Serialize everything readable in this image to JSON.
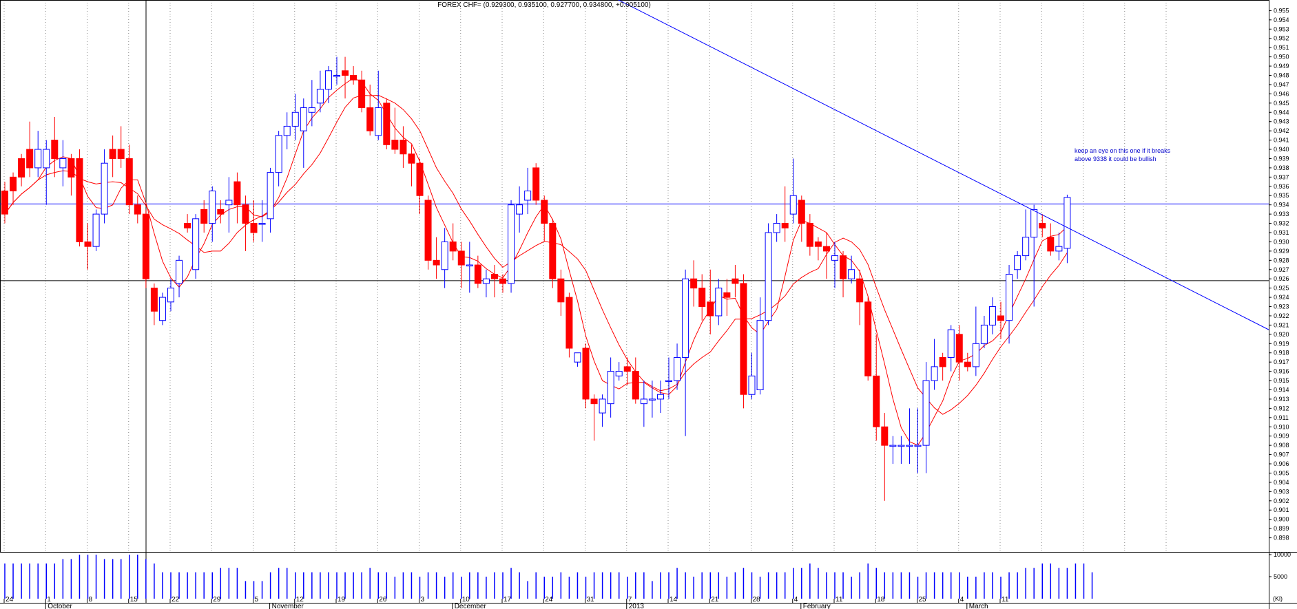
{
  "chart_data": {
    "type": "candlestick",
    "title": "FOREX CHF= (0.929300, 0.935100, 0.927700, 0.934800, +0.005100)",
    "ylim": [
      0.897,
      0.9557
    ],
    "y_ticks": [
      "0.955",
      "0.954",
      "0.953",
      "0.952",
      "0.951",
      "0.950",
      "0.949",
      "0.948",
      "0.947",
      "0.946",
      "0.945",
      "0.944",
      "0.943",
      "0.942",
      "0.941",
      "0.940",
      "0.939",
      "0.938",
      "0.937",
      "0.936",
      "0.935",
      "0.934",
      "0.933",
      "0.932",
      "0.931",
      "0.930",
      "0.929",
      "0.928",
      "0.927",
      "0.926",
      "0.925",
      "0.924",
      "0.923",
      "0.922",
      "0.921",
      "0.920",
      "0.919",
      "0.918",
      "0.917",
      "0.916",
      "0.915",
      "0.914",
      "0.913",
      "0.912",
      "0.911",
      "0.910",
      "0.909",
      "0.908",
      "0.907",
      "0.906",
      "0.905",
      "0.904",
      "0.903",
      "0.902",
      "0.901",
      "0.900",
      "0.899",
      "0.898"
    ],
    "volume_ticks": [
      "10000",
      "5000"
    ],
    "volume_unit_label": "(Kl)",
    "day_labels": [
      "24",
      "1",
      "8",
      "15",
      "22",
      "29",
      "5",
      "12",
      "19",
      "26",
      "3",
      "10",
      "17",
      "24",
      "31",
      "7",
      "14",
      "21",
      "28",
      "4",
      "11",
      "18",
      "25",
      "4",
      "11"
    ],
    "month_labels": [
      "October",
      "November",
      "December",
      "2013",
      "February",
      "March"
    ],
    "annotation": "keep an eye on this one if it breaks above 9338 it could be bullish",
    "annotation_lines": [
      "keep an eye on this one if it breaks",
      "above 9338 it could be bullish"
    ],
    "horizontal_lines": [
      0.9341,
      0.9258
    ],
    "trendline": {
      "start": 0.964,
      "end": 0.9205
    },
    "candles": [
      [
        0.9355,
        0.933,
        0.9365,
        0.932
      ],
      [
        0.937,
        0.9355,
        0.9375,
        0.934
      ],
      [
        0.939,
        0.937,
        0.9395,
        0.936
      ],
      [
        0.94,
        0.938,
        0.943,
        0.937
      ],
      [
        0.938,
        0.94,
        0.942,
        0.937
      ],
      [
        0.938,
        0.94,
        0.941,
        0.934
      ],
      [
        0.941,
        0.939,
        0.9435,
        0.937
      ],
      [
        0.938,
        0.939,
        0.941,
        0.936
      ],
      [
        0.939,
        0.937,
        0.9395,
        0.935
      ],
      [
        0.939,
        0.93,
        0.94,
        0.9295
      ],
      [
        0.93,
        0.9295,
        0.932,
        0.927
      ],
      [
        0.9295,
        0.933,
        0.9335,
        0.929
      ],
      [
        0.933,
        0.9385,
        0.94,
        0.932
      ],
      [
        0.94,
        0.939,
        0.9415,
        0.937
      ],
      [
        0.94,
        0.939,
        0.9425,
        0.938
      ],
      [
        0.939,
        0.934,
        0.9405,
        0.933
      ],
      [
        0.934,
        0.933,
        0.935,
        0.932
      ],
      [
        0.933,
        0.926,
        0.9335,
        0.925
      ],
      [
        0.925,
        0.9225,
        0.9255,
        0.921
      ],
      [
        0.9215,
        0.924,
        0.9245,
        0.921
      ],
      [
        0.9235,
        0.925,
        0.926,
        0.9225
      ],
      [
        0.9255,
        0.928,
        0.9285,
        0.924
      ],
      [
        0.932,
        0.9315,
        0.933,
        0.931
      ],
      [
        0.927,
        0.9325,
        0.933,
        0.926
      ],
      [
        0.9335,
        0.932,
        0.9345,
        0.931
      ],
      [
        0.932,
        0.9355,
        0.936,
        0.93
      ],
      [
        0.9335,
        0.933,
        0.9345,
        0.932
      ],
      [
        0.934,
        0.9345,
        0.937,
        0.931
      ],
      [
        0.9365,
        0.934,
        0.9375,
        0.932
      ],
      [
        0.934,
        0.932,
        0.935,
        0.929
      ],
      [
        0.932,
        0.931,
        0.9345,
        0.93
      ],
      [
        0.932,
        0.932,
        0.9345,
        0.93
      ],
      [
        0.9325,
        0.9375,
        0.938,
        0.931
      ],
      [
        0.9375,
        0.9415,
        0.942,
        0.936
      ],
      [
        0.9415,
        0.9425,
        0.944,
        0.94
      ],
      [
        0.9425,
        0.944,
        0.946,
        0.941
      ],
      [
        0.942,
        0.9445,
        0.9455,
        0.938
      ],
      [
        0.944,
        0.9445,
        0.9475,
        0.9425
      ],
      [
        0.945,
        0.9465,
        0.9485,
        0.944
      ],
      [
        0.9465,
        0.9485,
        0.949,
        0.945
      ],
      [
        0.948,
        0.948,
        0.95,
        0.947
      ],
      [
        0.9485,
        0.948,
        0.95,
        0.9455
      ],
      [
        0.948,
        0.9475,
        0.949,
        0.947
      ],
      [
        0.9475,
        0.9445,
        0.9485,
        0.944
      ],
      [
        0.9445,
        0.942,
        0.947,
        0.9415
      ],
      [
        0.9415,
        0.9445,
        0.9485,
        0.941
      ],
      [
        0.945,
        0.9405,
        0.9455,
        0.94
      ],
      [
        0.941,
        0.94,
        0.9445,
        0.9395
      ],
      [
        0.941,
        0.9395,
        0.9425,
        0.938
      ],
      [
        0.9395,
        0.9385,
        0.9405,
        0.936
      ],
      [
        0.9385,
        0.935,
        0.939,
        0.933
      ],
      [
        0.9345,
        0.928,
        0.935,
        0.927
      ],
      [
        0.928,
        0.9275,
        0.9305,
        0.926
      ],
      [
        0.927,
        0.93,
        0.9315,
        0.925
      ],
      [
        0.93,
        0.929,
        0.932,
        0.928
      ],
      [
        0.929,
        0.9275,
        0.93,
        0.925
      ],
      [
        0.9275,
        0.9275,
        0.93,
        0.9245
      ],
      [
        0.9275,
        0.9255,
        0.9285,
        0.925
      ],
      [
        0.9255,
        0.926,
        0.927,
        0.924
      ],
      [
        0.9265,
        0.926,
        0.9275,
        0.924
      ],
      [
        0.926,
        0.9255,
        0.9265,
        0.9245
      ],
      [
        0.9255,
        0.934,
        0.9345,
        0.9245
      ],
      [
        0.933,
        0.934,
        0.936,
        0.931
      ],
      [
        0.9345,
        0.9355,
        0.938,
        0.933
      ],
      [
        0.938,
        0.9345,
        0.9385,
        0.934
      ],
      [
        0.9345,
        0.932,
        0.935,
        0.93
      ],
      [
        0.932,
        0.926,
        0.9325,
        0.925
      ],
      [
        0.926,
        0.9235,
        0.927,
        0.922
      ],
      [
        0.924,
        0.9185,
        0.9245,
        0.9175
      ],
      [
        0.917,
        0.918,
        0.918,
        0.9165
      ],
      [
        0.9185,
        0.913,
        0.919,
        0.912
      ],
      [
        0.913,
        0.9125,
        0.9135,
        0.9085
      ],
      [
        0.9115,
        0.913,
        0.9135,
        0.91
      ],
      [
        0.9125,
        0.916,
        0.9175,
        0.911
      ],
      [
        0.9155,
        0.916,
        0.917,
        0.915
      ],
      [
        0.9165,
        0.916,
        0.9175,
        0.9145
      ],
      [
        0.916,
        0.913,
        0.9175,
        0.9125
      ],
      [
        0.9125,
        0.913,
        0.915,
        0.91
      ],
      [
        0.913,
        0.913,
        0.915,
        0.911
      ],
      [
        0.913,
        0.9135,
        0.915,
        0.9115
      ],
      [
        0.915,
        0.915,
        0.9175,
        0.913
      ],
      [
        0.915,
        0.9175,
        0.919,
        0.914
      ],
      [
        0.9175,
        0.926,
        0.927,
        0.909
      ],
      [
        0.926,
        0.925,
        0.928,
        0.923
      ],
      [
        0.925,
        0.923,
        0.9265,
        0.9215
      ],
      [
        0.9235,
        0.922,
        0.927,
        0.92
      ],
      [
        0.922,
        0.925,
        0.926,
        0.921
      ],
      [
        0.9245,
        0.924,
        0.926,
        0.922
      ],
      [
        0.926,
        0.9255,
        0.9275,
        0.924
      ],
      [
        0.9255,
        0.9135,
        0.9265,
        0.912
      ],
      [
        0.9135,
        0.9155,
        0.918,
        0.913
      ],
      [
        0.914,
        0.9215,
        0.924,
        0.9135
      ],
      [
        0.9215,
        0.931,
        0.932,
        0.921
      ],
      [
        0.931,
        0.932,
        0.933,
        0.93
      ],
      [
        0.932,
        0.9315,
        0.936,
        0.93
      ],
      [
        0.933,
        0.935,
        0.939,
        0.932
      ],
      [
        0.9345,
        0.932,
        0.935,
        0.93
      ],
      [
        0.932,
        0.9295,
        0.933,
        0.9285
      ],
      [
        0.93,
        0.9295,
        0.9305,
        0.928
      ],
      [
        0.9295,
        0.929,
        0.931,
        0.926
      ],
      [
        0.928,
        0.9285,
        0.93,
        0.925
      ],
      [
        0.9285,
        0.926,
        0.929,
        0.924
      ],
      [
        0.926,
        0.927,
        0.9285,
        0.9255
      ],
      [
        0.926,
        0.9235,
        0.927,
        0.921
      ],
      [
        0.9235,
        0.9155,
        0.924,
        0.915
      ],
      [
        0.9155,
        0.91,
        0.92,
        0.9085
      ],
      [
        0.91,
        0.908,
        0.9115,
        0.902
      ],
      [
        0.908,
        0.908,
        0.909,
        0.906
      ],
      [
        0.908,
        0.908,
        0.909,
        0.906
      ],
      [
        0.908,
        0.908,
        0.912,
        0.906
      ],
      [
        0.908,
        0.908,
        0.912,
        0.905
      ],
      [
        0.908,
        0.915,
        0.917,
        0.905
      ],
      [
        0.915,
        0.9165,
        0.9195,
        0.914
      ],
      [
        0.9175,
        0.9165,
        0.918,
        0.915
      ],
      [
        0.9175,
        0.9205,
        0.921,
        0.916
      ],
      [
        0.92,
        0.917,
        0.921,
        0.915
      ],
      [
        0.917,
        0.9165,
        0.918,
        0.916
      ],
      [
        0.9165,
        0.919,
        0.923,
        0.9155
      ],
      [
        0.919,
        0.921,
        0.922,
        0.9185
      ],
      [
        0.921,
        0.923,
        0.924,
        0.92
      ],
      [
        0.922,
        0.9215,
        0.9235,
        0.9195
      ],
      [
        0.9215,
        0.9265,
        0.9275,
        0.919
      ],
      [
        0.927,
        0.9285,
        0.929,
        0.926
      ],
      [
        0.9285,
        0.9305,
        0.9335,
        0.928
      ],
      [
        0.9305,
        0.9335,
        0.934,
        0.923
      ],
      [
        0.932,
        0.9315,
        0.933,
        0.9305
      ],
      [
        0.9305,
        0.929,
        0.932,
        0.9285
      ],
      [
        0.929,
        0.9295,
        0.931,
        0.928
      ],
      [
        0.9293,
        0.9348,
        0.9351,
        0.9277
      ]
    ],
    "volume": [
      8,
      8,
      8,
      8,
      8,
      8,
      8,
      9,
      9,
      10,
      10,
      10,
      9,
      9,
      9,
      10,
      10,
      9,
      8,
      6,
      6,
      6,
      6,
      6,
      6,
      6,
      7,
      7,
      7,
      4,
      4,
      4,
      6,
      7,
      7,
      6,
      6,
      6,
      6,
      6,
      6,
      6,
      6,
      6,
      7,
      6,
      6,
      5,
      6,
      6,
      5,
      6,
      6,
      5,
      6,
      5,
      6,
      6,
      5,
      6,
      6,
      7,
      6,
      4,
      6,
      5,
      5,
      6,
      5,
      6,
      5,
      6,
      6,
      6,
      6,
      5,
      6,
      6,
      4,
      6,
      6,
      7,
      6,
      5,
      6,
      6,
      6,
      5,
      6,
      7,
      6,
      5,
      6,
      6,
      6,
      7,
      7,
      8,
      7,
      6,
      6,
      6,
      5,
      6,
      8,
      7,
      6,
      6,
      6,
      6,
      5,
      6,
      6,
      6,
      6,
      6,
      5,
      5,
      6,
      6,
      5,
      6,
      6,
      7,
      7,
      8,
      8,
      7,
      7,
      8,
      8,
      6
    ]
  }
}
